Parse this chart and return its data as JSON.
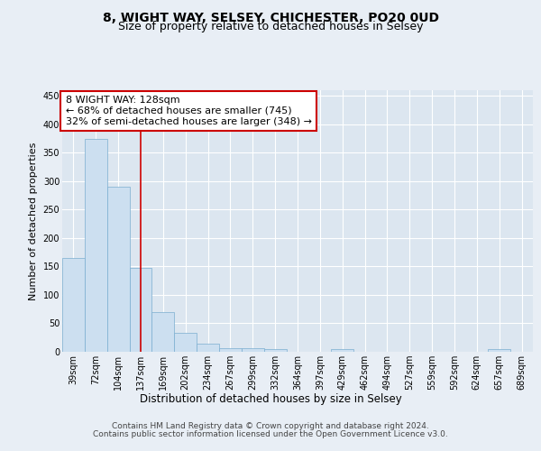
{
  "title": "8, WIGHT WAY, SELSEY, CHICHESTER, PO20 0UD",
  "subtitle": "Size of property relative to detached houses in Selsey",
  "xlabel": "Distribution of detached houses by size in Selsey",
  "ylabel": "Number of detached properties",
  "categories": [
    "39sqm",
    "72sqm",
    "104sqm",
    "137sqm",
    "169sqm",
    "202sqm",
    "234sqm",
    "267sqm",
    "299sqm",
    "332sqm",
    "364sqm",
    "397sqm",
    "429sqm",
    "462sqm",
    "494sqm",
    "527sqm",
    "559sqm",
    "592sqm",
    "624sqm",
    "657sqm",
    "689sqm"
  ],
  "values": [
    165,
    375,
    290,
    148,
    70,
    33,
    14,
    7,
    6,
    5,
    0,
    0,
    4,
    0,
    0,
    0,
    0,
    0,
    0,
    4,
    0
  ],
  "bar_color": "#ccdff0",
  "bar_edge_color": "#7aaed0",
  "vline_x": 3.0,
  "vline_color": "#cc0000",
  "annotation_text": "8 WIGHT WAY: 128sqm\n← 68% of detached houses are smaller (745)\n32% of semi-detached houses are larger (348) →",
  "annotation_box_color": "#ffffff",
  "annotation_box_edge_color": "#cc0000",
  "ylim": [
    0,
    460
  ],
  "yticks": [
    0,
    50,
    100,
    150,
    200,
    250,
    300,
    350,
    400,
    450
  ],
  "background_color": "#e8eef5",
  "plot_background_color": "#dce6f0",
  "footer_line1": "Contains HM Land Registry data © Crown copyright and database right 2024.",
  "footer_line2": "Contains public sector information licensed under the Open Government Licence v3.0.",
  "title_fontsize": 10,
  "subtitle_fontsize": 9,
  "xlabel_fontsize": 8.5,
  "ylabel_fontsize": 8,
  "tick_fontsize": 7,
  "annotation_fontsize": 8,
  "footer_fontsize": 6.5
}
